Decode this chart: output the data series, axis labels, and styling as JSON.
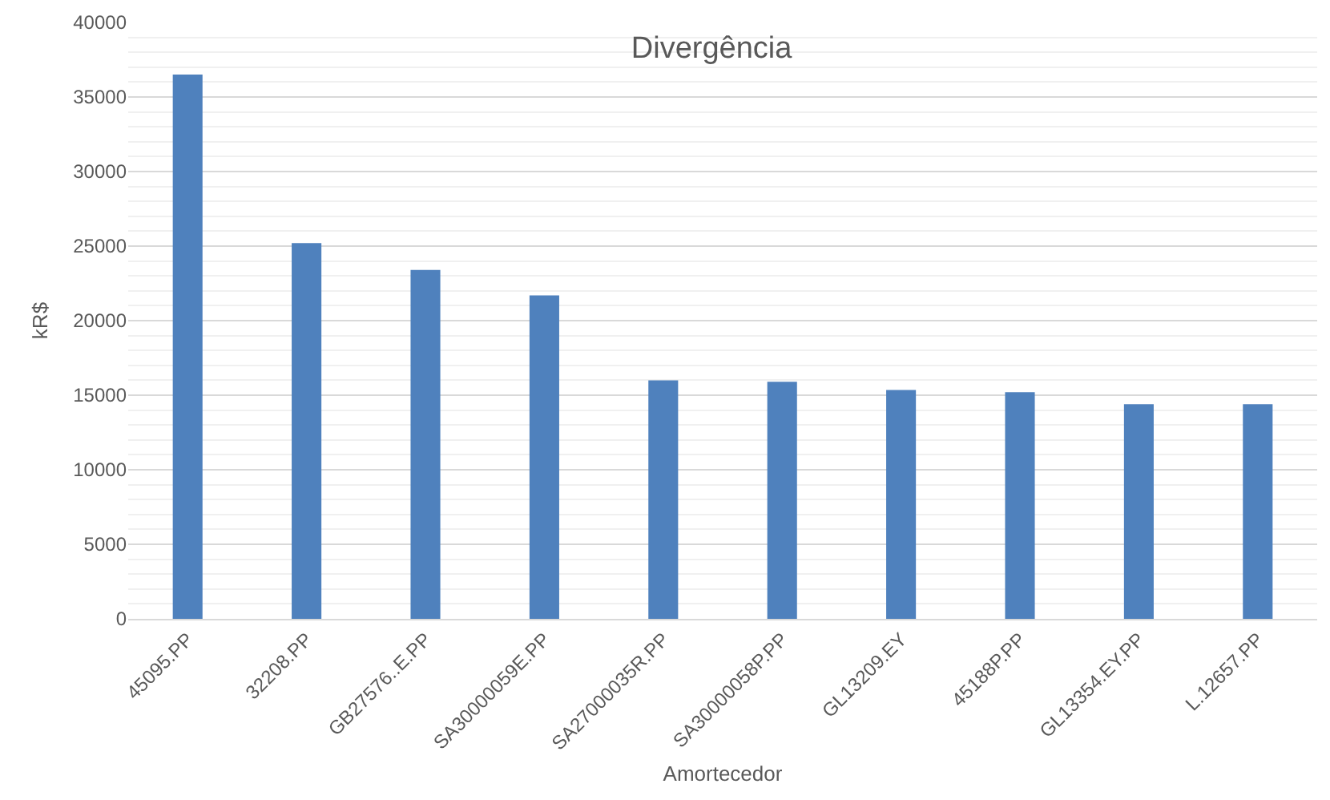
{
  "chart_data": {
    "type": "bar",
    "title": "Divergência",
    "xlabel": "Amortecedor",
    "ylabel": "kR$",
    "categories": [
      "45095.PP",
      "32208.PP",
      "GB27576..E.PP",
      "SA30000059E.PP",
      "SA27000035R.PP",
      "SA30000058P.PP",
      "GL13209.EY",
      "45188P.PP",
      "GL13354.EY.PP",
      "L.12657.PP"
    ],
    "values": [
      36500,
      25200,
      23400,
      21700,
      16000,
      15900,
      15350,
      15200,
      14400,
      14400
    ],
    "color": "#4f81bd",
    "ylim": [
      0,
      40000
    ],
    "yticks": [
      0,
      5000,
      10000,
      15000,
      20000,
      25000,
      30000,
      35000,
      40000
    ],
    "grid": "y"
  }
}
